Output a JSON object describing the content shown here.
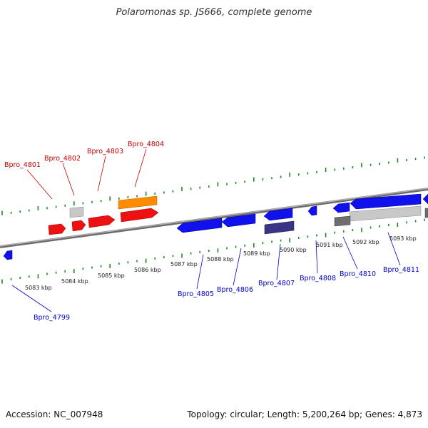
{
  "title": "Polaromonas sp. JS666, complete genome",
  "footer": {
    "accession": "Accession: NC_007948",
    "summary": "Topology: circular; Length: 5,200,264 bp; Genes: 4,873"
  },
  "colors": {
    "backbone": "#8a8a8a",
    "tick": "#1a8a1a",
    "forward_label": "#cc0000",
    "reverse_label": "#0000cc",
    "red": "#ee1111",
    "orange": "#ff8c00",
    "grey": "#c8c8c8",
    "dark_grey": "#6e6e6e",
    "blue": "#1111ee",
    "navy": "#3a3486"
  },
  "scale_labels": [
    "5083 kbp",
    "5084 kbp",
    "5085 kbp",
    "5086 kbp",
    "5087 kbp",
    "5088 kbp",
    "5089 kbp",
    "5090 kbp",
    "5091 kbp",
    "5092 kbp",
    "5093 kbp"
  ],
  "forward_gene_labels": [
    "Bpro_4801",
    "Bpro_4802",
    "Bpro_4803",
    "Bpro_4804"
  ],
  "reverse_gene_labels": [
    "Bpro_4799",
    "Bpro_4805",
    "Bpro_4806",
    "Bpro_4807",
    "Bpro_4808",
    "Bpro_4810",
    "Bpro_4811"
  ]
}
